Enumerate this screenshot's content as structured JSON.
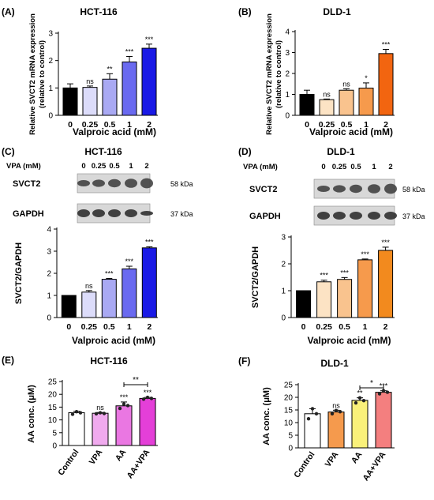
{
  "chart_data": [
    {
      "panel": "(A)",
      "title": "HCT-116",
      "type": "bar",
      "ylabel_lines": [
        "Relative SVCT2 mRNA expression",
        "(relative to control)"
      ],
      "xlabel": "Valproic acid (mM)",
      "categories": [
        "0",
        "0.25",
        "0.5",
        "1",
        "2"
      ],
      "values": [
        1.0,
        1.02,
        1.32,
        1.95,
        2.45
      ],
      "errors": [
        0.15,
        0.05,
        0.2,
        0.2,
        0.15
      ],
      "significance": [
        "",
        "ns",
        "**",
        "***",
        "***"
      ],
      "ylim": [
        0,
        3
      ],
      "yticks": [
        0,
        1,
        2,
        3
      ],
      "colors": [
        "#000000",
        "#dcdcfa",
        "#a9a9f3",
        "#6a6af0",
        "#1a1ae6"
      ]
    },
    {
      "panel": "(B)",
      "title": "DLD-1",
      "type": "bar",
      "ylabel_lines": [
        "Relative SVCT2 mRNA expression",
        "(relative to control)"
      ],
      "xlabel": "Valproic acid (mM)",
      "categories": [
        "0",
        "0.25",
        "0.5",
        "1",
        "2"
      ],
      "values": [
        1.0,
        0.75,
        1.2,
        1.3,
        2.95
      ],
      "errors": [
        0.2,
        0.03,
        0.07,
        0.25,
        0.2
      ],
      "significance": [
        "",
        "ns",
        "ns",
        "*",
        "***"
      ],
      "ylim": [
        0,
        4
      ],
      "yticks": [
        0,
        1,
        2,
        3,
        4
      ],
      "colors": [
        "#000000",
        "#fce3c4",
        "#f9c38e",
        "#f69a4c",
        "#f26510"
      ]
    },
    {
      "panel": "(C)",
      "title": "HCT-116",
      "type": "bar",
      "western_blot": {
        "header": "VPA (mM)",
        "lanes": [
          "0",
          "0.25",
          "0.5",
          "1",
          "2"
        ],
        "rows": [
          {
            "label": "SVCT2",
            "size": "58 kDa"
          },
          {
            "label": "GAPDH",
            "size": "37 kDa"
          }
        ]
      },
      "ylabel": "SVCT2/GAPDH",
      "xlabel": "Valproic acid (mM)",
      "categories": [
        "0",
        "0.25",
        "0.5",
        "1",
        "2"
      ],
      "values": [
        1.0,
        1.15,
        1.73,
        2.2,
        3.15
      ],
      "errors": [
        0.0,
        0.07,
        0.04,
        0.12,
        0.05
      ],
      "significance": [
        "",
        "ns",
        "***",
        "***",
        "***"
      ],
      "ylim": [
        0,
        4
      ],
      "yticks": [
        0,
        1,
        2,
        3,
        4
      ],
      "colors": [
        "#000000",
        "#dcdcfa",
        "#a9a9f3",
        "#6a6af0",
        "#1a1ae6"
      ]
    },
    {
      "panel": "(D)",
      "title": "DLD-1",
      "type": "bar",
      "western_blot": {
        "header": "VPA (mM)",
        "lanes": [
          "0",
          "0.25",
          "0.5",
          "1",
          "2"
        ],
        "rows": [
          {
            "label": "SVCT2",
            "size": "58 kDa"
          },
          {
            "label": "GAPDH",
            "size": "37 kDa"
          }
        ]
      },
      "ylabel": "SVCT2/GAPDH",
      "xlabel": "Valproic acid (mM)",
      "categories": [
        "0",
        "0.25",
        "0.5",
        "1",
        "2"
      ],
      "values": [
        1.0,
        1.33,
        1.42,
        2.15,
        2.5
      ],
      "errors": [
        0.0,
        0.06,
        0.07,
        0.03,
        0.12
      ],
      "significance": [
        "",
        "***",
        "***",
        "***",
        "***"
      ],
      "ylim": [
        0,
        3
      ],
      "yticks": [
        0,
        1,
        2,
        3
      ],
      "colors": [
        "#000000",
        "#fce3c4",
        "#f9c38e",
        "#f69a4c",
        "#f28a1e"
      ]
    },
    {
      "panel": "(E)",
      "title": "HCT-116",
      "type": "bar",
      "ylabel": "AA conc. (μM)",
      "xlabel": "",
      "categories": [
        "Control",
        "VPA",
        "AA",
        "AA+VPA"
      ],
      "values": [
        12.8,
        12.6,
        15.5,
        18.4
      ],
      "errors": [
        0.6,
        0.3,
        1.5,
        0.4
      ],
      "points": [
        [
          12.2,
          13.2,
          12.8
        ],
        [
          12.4,
          12.8,
          12.5
        ],
        [
          14.5,
          16.2,
          15.6
        ],
        [
          18.1,
          18.8,
          18.4
        ]
      ],
      "significance": [
        "",
        "ns",
        "***",
        "***"
      ],
      "comparison": {
        "from": 2,
        "to": 3,
        "label": "**"
      },
      "ylim": [
        0,
        25
      ],
      "yticks": [
        0,
        5,
        10,
        15,
        20,
        25
      ],
      "colors": [
        "#ffffff",
        "#f0aaee",
        "#ea77e2",
        "#e43fd8"
      ]
    },
    {
      "panel": "(F)",
      "title": "DLD-1",
      "type": "bar",
      "ylabel": "AA conc. (μM)",
      "xlabel": "",
      "categories": [
        "Control",
        "VPA",
        "AA",
        "AA+VPA"
      ],
      "values": [
        13.5,
        14.2,
        18.8,
        22.0
      ],
      "errors": [
        2.0,
        0.7,
        1.0,
        0.6
      ],
      "points": [
        [
          11.5,
          15.5,
          13.5
        ],
        [
          13.5,
          14.8,
          14.3
        ],
        [
          17.8,
          19.8,
          18.7
        ],
        [
          21.4,
          22.6,
          22.0
        ]
      ],
      "significance": [
        "",
        "ns",
        "**",
        "***"
      ],
      "comparison": {
        "from": 2,
        "to": 3,
        "label": "*"
      },
      "ylim": [
        0,
        25
      ],
      "yticks": [
        0,
        5,
        10,
        15,
        20,
        25
      ],
      "colors": [
        "#ffffff",
        "#f59a4d",
        "#faf17a",
        "#f47f7f"
      ]
    }
  ]
}
